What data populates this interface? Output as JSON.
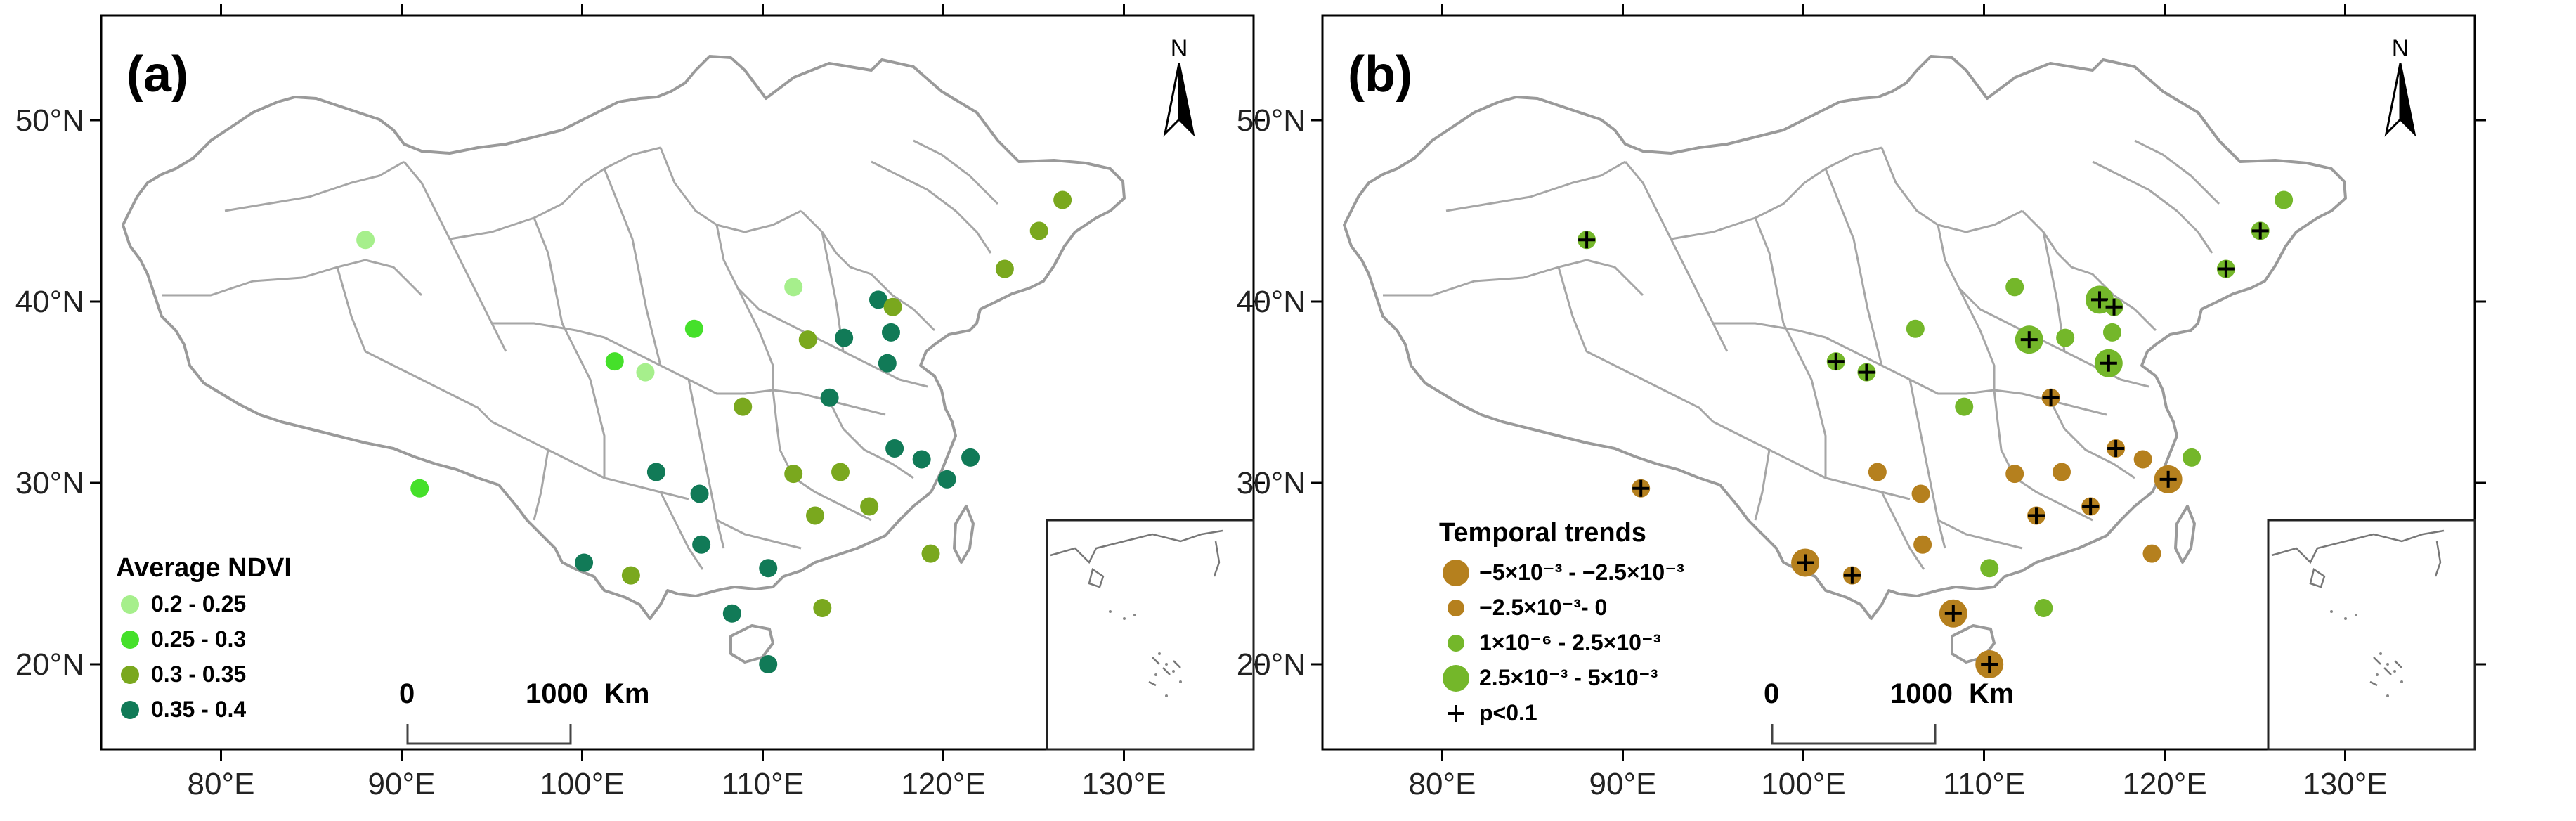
{
  "panels": [
    {
      "label": "(a)",
      "legend": {
        "title": "Average NDVI",
        "items": [
          {
            "label": "0.2 - 0.25",
            "color": "#a6ef8c"
          },
          {
            "label": "0.25 - 0.3",
            "color": "#45e02a"
          },
          {
            "label": "0.3 - 0.35",
            "color": "#7aa81e"
          },
          {
            "label": "0.35 - 0.4",
            "color": "#117a57"
          }
        ]
      }
    },
    {
      "label": "(b)",
      "legend": {
        "title": "Temporal trends",
        "items": [
          {
            "label": "−5×10⁻³  -  −2.5×10⁻³",
            "color": "#b5801e",
            "size": "large"
          },
          {
            "label": "−2.5×10⁻³- 0",
            "color": "#b5801e",
            "size": "small"
          },
          {
            "label": "1×10⁻⁶  -  2.5×10⁻³",
            "color": "#74b72a",
            "size": "small"
          },
          {
            "label": "2.5×10⁻³  -  5×10⁻³",
            "color": "#74b72a",
            "size": "large"
          }
        ],
        "significance_label": "p<0.1"
      }
    }
  ],
  "axes": {
    "lon_ticks": [
      "80°E",
      "90°E",
      "100°E",
      "110°E",
      "120°E",
      "130°E"
    ],
    "lat_ticks": [
      "50°N",
      "40°N",
      "30°N",
      "20°N"
    ]
  },
  "scale_bar": {
    "start_label": "0",
    "end_label": "1000",
    "unit": "Km"
  },
  "north_arrow": {
    "label": "N"
  },
  "stations": [
    {
      "lon": 88.0,
      "lat": 43.4,
      "ndvi_class": 0,
      "trend_class": 2,
      "sig": true
    },
    {
      "lon": 91.0,
      "lat": 29.7,
      "ndvi_class": 1,
      "trend_class": 1,
      "sig": true
    },
    {
      "lon": 101.8,
      "lat": 36.7,
      "ndvi_class": 1,
      "trend_class": 2,
      "sig": true
    },
    {
      "lon": 103.5,
      "lat": 36.1,
      "ndvi_class": 0,
      "trend_class": 2,
      "sig": true
    },
    {
      "lon": 106.2,
      "lat": 38.5,
      "ndvi_class": 1,
      "trend_class": 2,
      "sig": false
    },
    {
      "lon": 111.7,
      "lat": 40.8,
      "ndvi_class": 0,
      "trend_class": 2,
      "sig": false
    },
    {
      "lon": 112.5,
      "lat": 37.9,
      "ndvi_class": 2,
      "trend_class": 3,
      "sig": true
    },
    {
      "lon": 114.5,
      "lat": 38.0,
      "ndvi_class": 3,
      "trend_class": 2,
      "sig": false
    },
    {
      "lon": 116.4,
      "lat": 40.1,
      "ndvi_class": 3,
      "trend_class": 3,
      "sig": true
    },
    {
      "lon": 117.2,
      "lat": 39.7,
      "ndvi_class": 2,
      "trend_class": 2,
      "sig": true
    },
    {
      "lon": 117.1,
      "lat": 38.3,
      "ndvi_class": 3,
      "trend_class": 2,
      "sig": false
    },
    {
      "lon": 116.9,
      "lat": 36.6,
      "ndvi_class": 3,
      "trend_class": 3,
      "sig": true
    },
    {
      "lon": 113.7,
      "lat": 34.7,
      "ndvi_class": 3,
      "trend_class": 1,
      "sig": true
    },
    {
      "lon": 108.9,
      "lat": 34.2,
      "ndvi_class": 2,
      "trend_class": 2,
      "sig": false
    },
    {
      "lon": 123.4,
      "lat": 41.8,
      "ndvi_class": 2,
      "trend_class": 2,
      "sig": true
    },
    {
      "lon": 125.3,
      "lat": 43.9,
      "ndvi_class": 2,
      "trend_class": 2,
      "sig": true
    },
    {
      "lon": 126.6,
      "lat": 45.6,
      "ndvi_class": 2,
      "trend_class": 2,
      "sig": false
    },
    {
      "lon": 104.1,
      "lat": 30.6,
      "ndvi_class": 3,
      "trend_class": 1,
      "sig": false
    },
    {
      "lon": 106.5,
      "lat": 29.4,
      "ndvi_class": 3,
      "trend_class": 1,
      "sig": false
    },
    {
      "lon": 106.6,
      "lat": 26.6,
      "ndvi_class": 3,
      "trend_class": 1,
      "sig": false
    },
    {
      "lon": 102.7,
      "lat": 24.9,
      "ndvi_class": 2,
      "trend_class": 1,
      "sig": true
    },
    {
      "lon": 100.1,
      "lat": 25.6,
      "ndvi_class": 3,
      "trend_class": 0,
      "sig": true
    },
    {
      "lon": 108.3,
      "lat": 22.8,
      "ndvi_class": 3,
      "trend_class": 0,
      "sig": true
    },
    {
      "lon": 110.3,
      "lat": 20.0,
      "ndvi_class": 3,
      "trend_class": 0,
      "sig": true
    },
    {
      "lon": 110.3,
      "lat": 25.3,
      "ndvi_class": 3,
      "trend_class": 2,
      "sig": false
    },
    {
      "lon": 113.3,
      "lat": 23.1,
      "ndvi_class": 2,
      "trend_class": 2,
      "sig": false
    },
    {
      "lon": 112.9,
      "lat": 28.2,
      "ndvi_class": 2,
      "trend_class": 1,
      "sig": true
    },
    {
      "lon": 111.7,
      "lat": 30.5,
      "ndvi_class": 2,
      "trend_class": 1,
      "sig": false
    },
    {
      "lon": 114.3,
      "lat": 30.6,
      "ndvi_class": 2,
      "trend_class": 1,
      "sig": false
    },
    {
      "lon": 115.9,
      "lat": 28.7,
      "ndvi_class": 2,
      "trend_class": 1,
      "sig": true
    },
    {
      "lon": 117.3,
      "lat": 31.9,
      "ndvi_class": 3,
      "trend_class": 1,
      "sig": true
    },
    {
      "lon": 118.8,
      "lat": 31.3,
      "ndvi_class": 3,
      "trend_class": 1,
      "sig": false
    },
    {
      "lon": 120.2,
      "lat": 30.2,
      "ndvi_class": 3,
      "trend_class": 0,
      "sig": true
    },
    {
      "lon": 121.5,
      "lat": 31.4,
      "ndvi_class": 3,
      "trend_class": 2,
      "sig": false
    },
    {
      "lon": 119.3,
      "lat": 26.1,
      "ndvi_class": 2,
      "trend_class": 1,
      "sig": false
    }
  ]
}
